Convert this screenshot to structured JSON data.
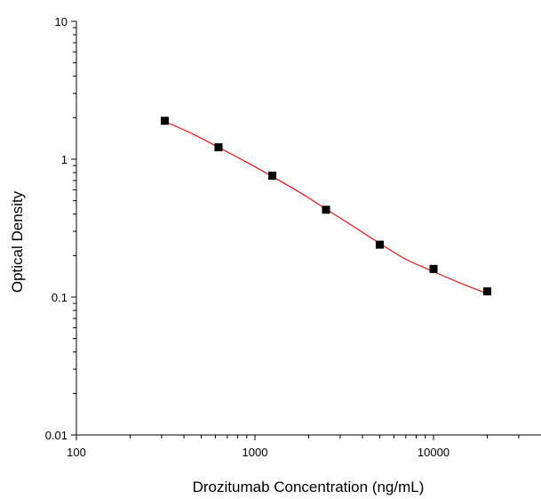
{
  "chart_data": {
    "type": "scatter",
    "xlabel": "Drozitumab  Concentration (ng/mL)",
    "ylabel": "Optical Density",
    "x_scale": "log",
    "y_scale": "log",
    "xlim": [
      100,
      40000
    ],
    "ylim": [
      0.01,
      10
    ],
    "x_ticks": [
      100,
      1000,
      10000
    ],
    "x_tick_labels": [
      "100",
      "1000",
      "10000"
    ],
    "y_ticks": [
      0.01,
      0.1,
      1,
      10
    ],
    "y_tick_labels": [
      "0.01",
      "0.1",
      "1",
      "10"
    ],
    "grid": false,
    "series": [
      {
        "kind": "points",
        "marker": "square",
        "color": "#000000",
        "x": [
          312.5,
          625,
          1250,
          2500,
          5000,
          10000,
          20000
        ],
        "y": [
          1.9,
          1.22,
          0.76,
          0.43,
          0.24,
          0.16,
          0.11
        ]
      },
      {
        "kind": "fit-line",
        "color": "#e8140c",
        "x": [
          312.5,
          450,
          625,
          900,
          1250,
          1800,
          2500,
          3500,
          5000,
          7000,
          10000,
          14000,
          20000
        ],
        "y": [
          1.88,
          1.52,
          1.22,
          0.95,
          0.75,
          0.57,
          0.435,
          0.33,
          0.245,
          0.188,
          0.153,
          0.127,
          0.106
        ]
      }
    ]
  }
}
